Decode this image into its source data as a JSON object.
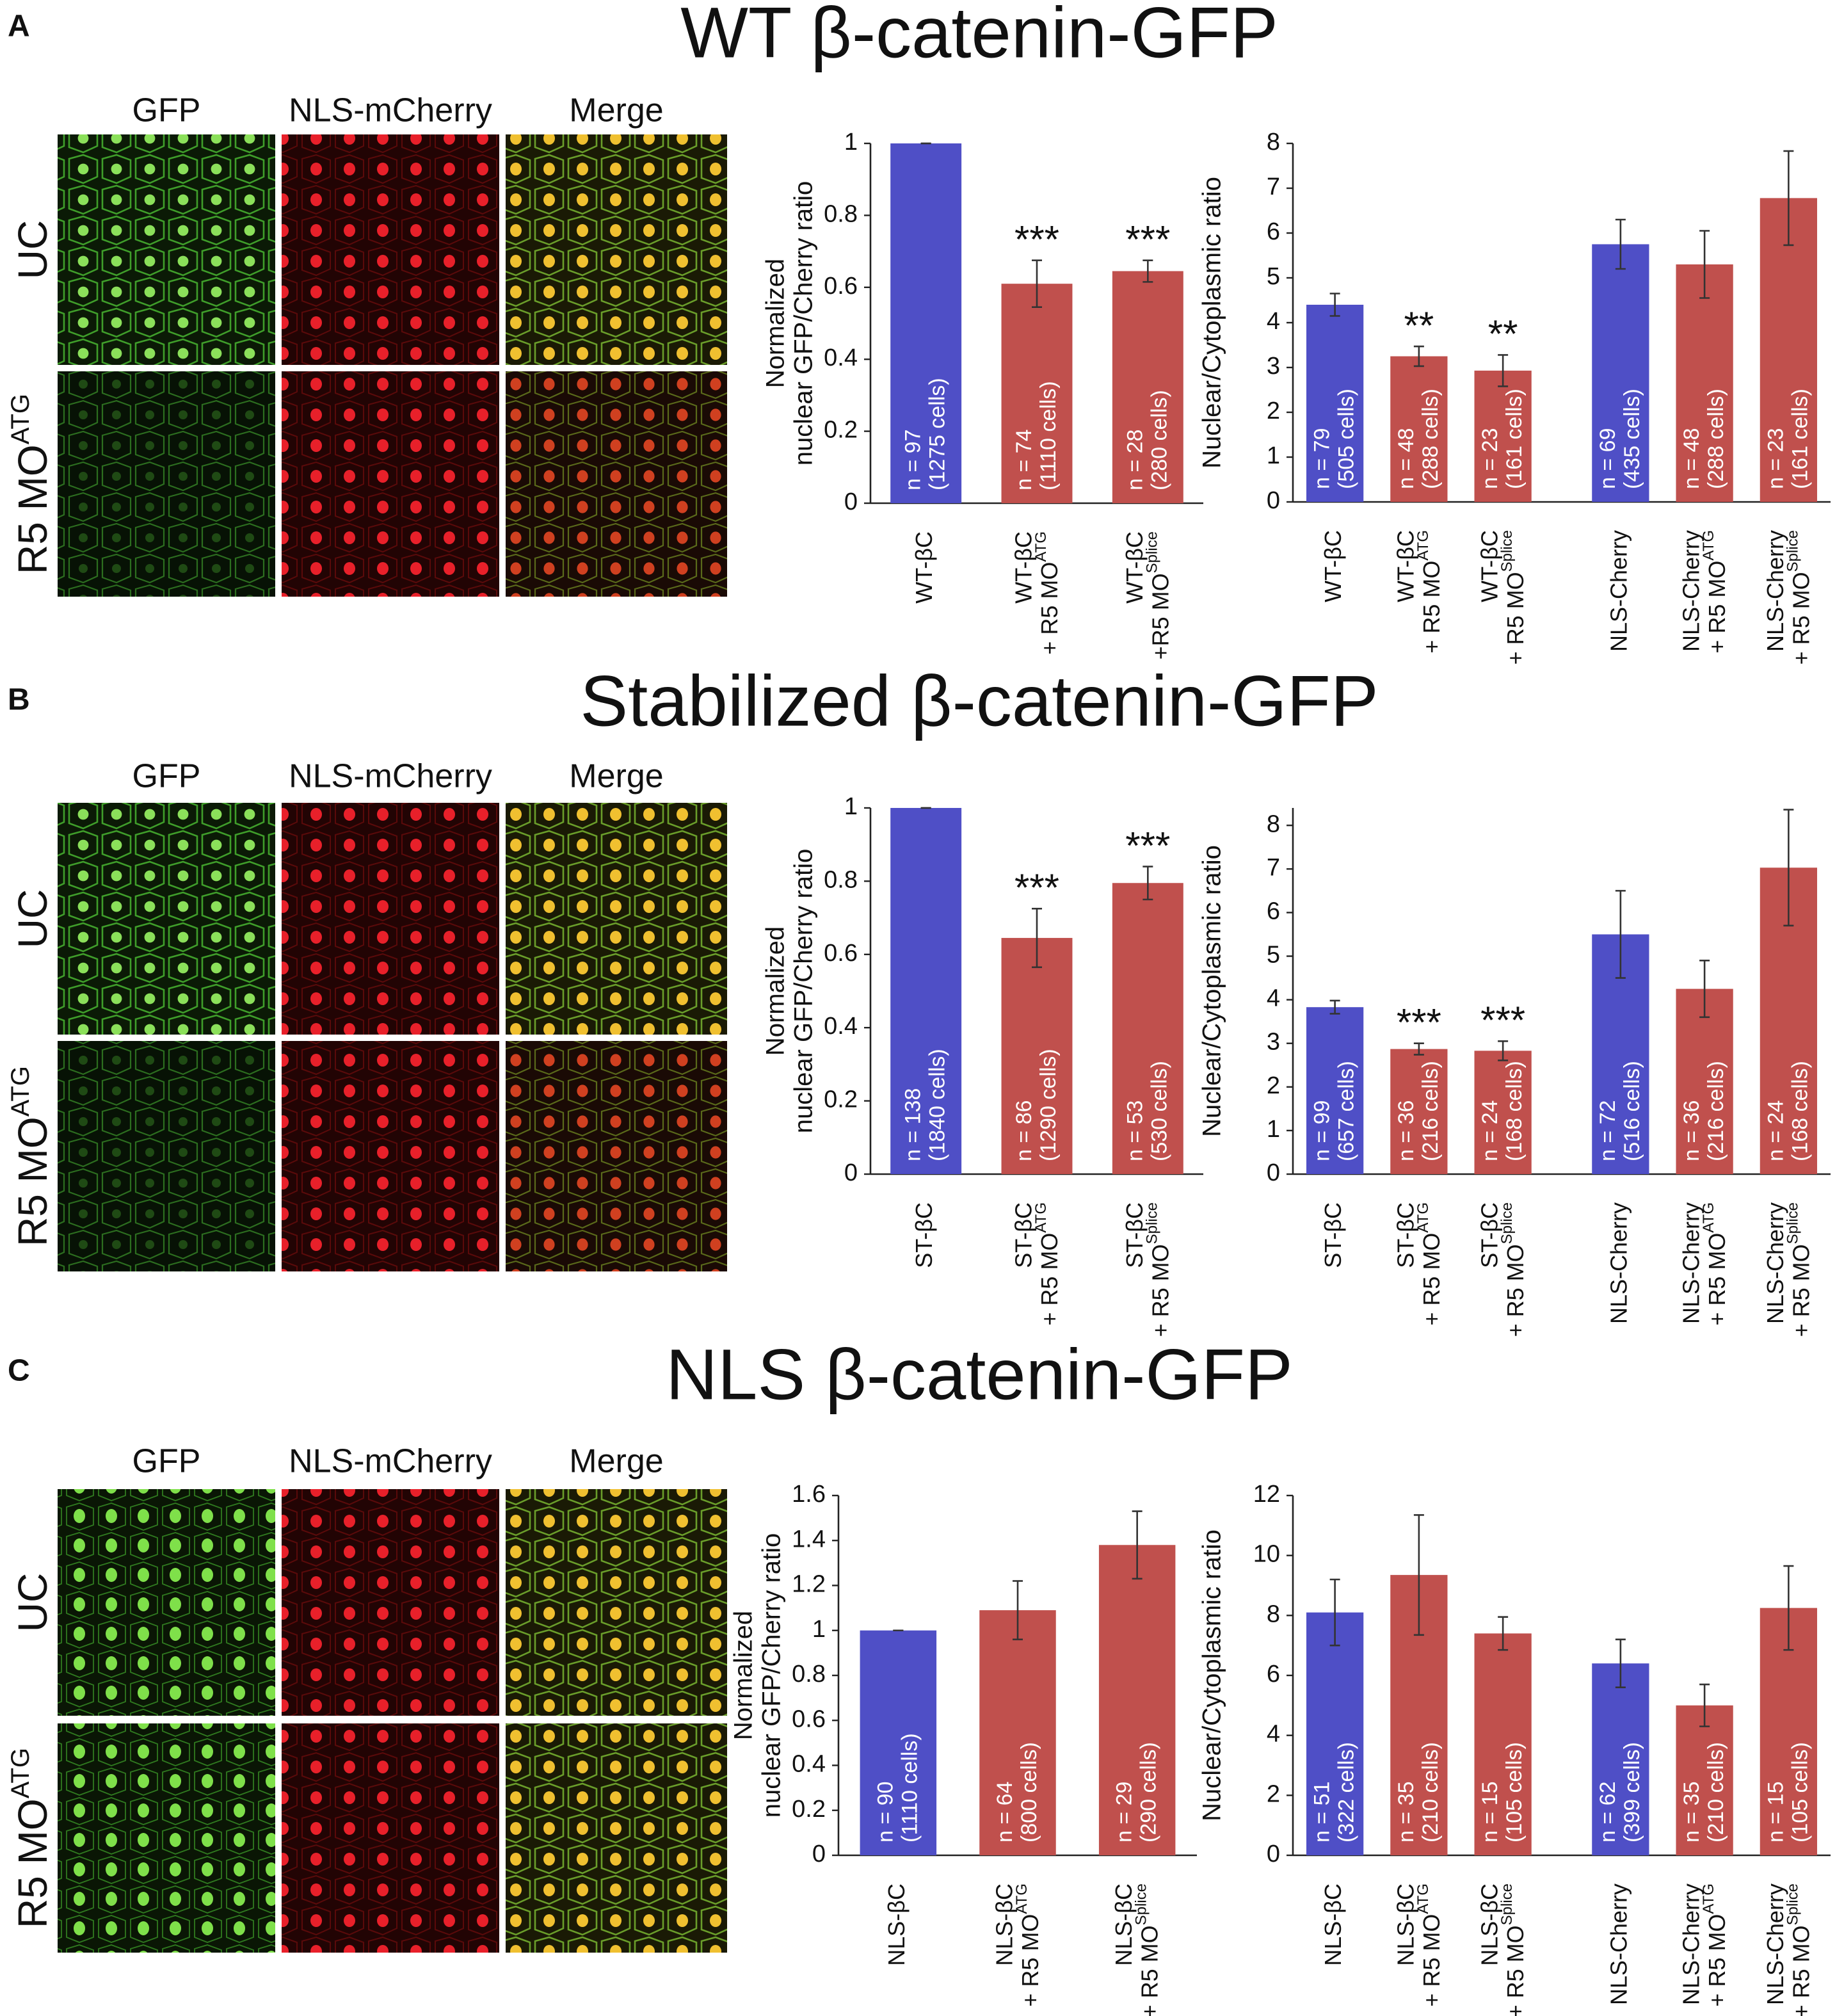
{
  "panels": [
    {
      "letter": "A",
      "title": "WT β-catenin-GFP",
      "columns": [
        "GFP",
        "NLS-mCherry",
        "Merge"
      ],
      "rows": [
        {
          "text": "UC"
        },
        {
          "text": "R5 MO",
          "sup": "ATG"
        }
      ]
    },
    {
      "letter": "B",
      "title": "Stabilized β-catenin-GFP",
      "columns": [
        "GFP",
        "NLS-mCherry",
        "Merge"
      ],
      "rows": [
        {
          "text": "UC"
        },
        {
          "text": "R5 MO",
          "sup": "ATG"
        }
      ]
    },
    {
      "letter": "C",
      "title": "NLS β-catenin-GFP",
      "columns": [
        "GFP",
        "NLS-mCherry",
        "Merge"
      ],
      "rows": [
        {
          "text": "UC"
        },
        {
          "text": "R5 MO",
          "sup": "ATG"
        }
      ]
    }
  ],
  "chart_data": [
    {
      "type": "bar",
      "ylabel": [
        "Normalized",
        "nuclear GFP/Cherry ratio"
      ],
      "categories": [
        {
          "line1": "WT-βC"
        },
        {
          "line1": "WT-βC",
          "line2": "+ R5 MO",
          "sup": "ATG"
        },
        {
          "line1": "WT-βC",
          "line2": "+R5 MO",
          "sup": "Splice"
        }
      ],
      "values": [
        1,
        0.61,
        0.645
      ],
      "errors": [
        0,
        0.065,
        0.03
      ],
      "colors": [
        "#4f4fc6",
        "#c0504d",
        "#c0504d"
      ],
      "bar_labels": [
        [
          "n = 97",
          "(1275 cells)"
        ],
        [
          "n = 74",
          "(1110 cells)"
        ],
        [
          "n = 28",
          "(280 cells)"
        ]
      ],
      "annotations": [
        null,
        "***",
        "***"
      ],
      "ylim": [
        0,
        1
      ],
      "yticks": [
        0,
        0.2,
        0.4,
        0.6,
        0.8,
        1
      ]
    },
    {
      "type": "bar",
      "ylabel": [
        "Nuclear/Cytoplasmic ratio"
      ],
      "categories": [
        {
          "line1": "WT-βC"
        },
        {
          "line1": "WT-βC",
          "line2": "+ R5 MO",
          "sup": "ATG"
        },
        {
          "line1": "WT-βC",
          "line2": "+ R5 MO",
          "sup": "Splice"
        },
        {
          "line1": "NLS-Cherry"
        },
        {
          "line1": "NLS-Cherry",
          "line2": "+ R5 MO",
          "sup": "ATG"
        },
        {
          "line1": "NLS-Cherry",
          "line2": "+ R5 MO",
          "sup": "Splice"
        }
      ],
      "values": [
        4.4,
        3.25,
        2.93,
        5.75,
        5.3,
        6.78
      ],
      "errors": [
        0.25,
        0.22,
        0.35,
        0.55,
        0.75,
        1.05
      ],
      "colors": [
        "#4f4fc6",
        "#c0504d",
        "#c0504d",
        "#4f4fc6",
        "#c0504d",
        "#c0504d"
      ],
      "bar_labels": [
        [
          "n = 79",
          "(505 cells)"
        ],
        [
          "n = 48",
          "(288 cells)"
        ],
        [
          "n = 23",
          "(161 cells)"
        ],
        [
          "n = 69",
          "(435 cells)"
        ],
        [
          "n = 48",
          "(288 cells)"
        ],
        [
          "n = 23",
          "(161 cells)"
        ]
      ],
      "annotations": [
        null,
        "**",
        "**",
        null,
        null,
        null
      ],
      "ylim": [
        0,
        8
      ],
      "yticks": [
        0,
        1,
        2,
        3,
        4,
        5,
        6,
        7,
        8
      ]
    },
    {
      "type": "bar",
      "ylabel": [
        "Normalized",
        "nuclear GFP/Cherry ratio"
      ],
      "categories": [
        {
          "line1": "ST-βC"
        },
        {
          "line1": "ST-βC",
          "line2": "+ R5 MO",
          "sup": "ATG"
        },
        {
          "line1": "ST-βC",
          "line2": "+ R5 MO",
          "sup": "Splice"
        }
      ],
      "values": [
        1,
        0.645,
        0.795
      ],
      "errors": [
        0,
        0.08,
        0.045
      ],
      "colors": [
        "#4f4fc6",
        "#c0504d",
        "#c0504d"
      ],
      "bar_labels": [
        [
          "n = 138",
          "(1840 cells)"
        ],
        [
          "n = 86",
          "(1290 cells)"
        ],
        [
          "n = 53",
          "(530 cells)"
        ]
      ],
      "annotations": [
        null,
        "***",
        "***"
      ],
      "ylim": [
        0,
        1
      ],
      "yticks": [
        0,
        0.2,
        0.4,
        0.6,
        0.8,
        1
      ]
    },
    {
      "type": "bar",
      "ylabel": [
        "Nuclear/Cytoplasmic ratio"
      ],
      "categories": [
        {
          "line1": "ST-βC"
        },
        {
          "line1": "ST-βC",
          "line2": "+ R5 MO",
          "sup": "ATG"
        },
        {
          "line1": "ST-βC",
          "line2": "+ R5 MO",
          "sup": "Splice"
        },
        {
          "line1": "NLS-Cherry"
        },
        {
          "line1": "NLS-Cherry",
          "line2": "+ R5 MO",
          "sup": "ATG"
        },
        {
          "line1": "NLS-Cherry",
          "line2": "+ R5 MO",
          "sup": "Splice"
        }
      ],
      "values": [
        3.83,
        2.87,
        2.83,
        5.5,
        4.25,
        7.03
      ],
      "errors": [
        0.15,
        0.13,
        0.22,
        1.0,
        0.65,
        1.33
      ],
      "colors": [
        "#4f4fc6",
        "#c0504d",
        "#c0504d",
        "#4f4fc6",
        "#c0504d",
        "#c0504d"
      ],
      "bar_labels": [
        [
          "n = 99",
          "(657 cells)"
        ],
        [
          "n = 36",
          "(216 cells)"
        ],
        [
          "n = 24",
          "(168 cells)"
        ],
        [
          "n = 72",
          "(516 cells)"
        ],
        [
          "n = 36",
          "(216 cells)"
        ],
        [
          "n = 24",
          "(168 cells)"
        ]
      ],
      "annotations": [
        null,
        "***",
        "***",
        null,
        null,
        null
      ],
      "ylim": [
        0,
        8.4
      ],
      "yticks": [
        0,
        1,
        2,
        3,
        4,
        5,
        6,
        7,
        8
      ]
    },
    {
      "type": "bar",
      "ylabel": [
        "Normalized",
        "nuclear GFP/Cherry ratio"
      ],
      "categories": [
        {
          "line1": "NLS-βC"
        },
        {
          "line1": "NLS-βC",
          "line2": "+ R5 MO",
          "sup": "ATG"
        },
        {
          "line1": "NLS-βC",
          "line2": "+ R5 MO",
          "sup": "Splice"
        }
      ],
      "values": [
        1,
        1.09,
        1.38
      ],
      "errors": [
        0,
        0.13,
        0.15
      ],
      "colors": [
        "#4f4fc6",
        "#c0504d",
        "#c0504d"
      ],
      "bar_labels": [
        [
          "n = 90",
          "(1110 cells)"
        ],
        [
          "n = 64",
          "(800 cells)"
        ],
        [
          "n = 29",
          "(290 cells)"
        ]
      ],
      "annotations": [
        null,
        null,
        null
      ],
      "ylim": [
        0,
        1.6
      ],
      "yticks": [
        0,
        0.2,
        0.4,
        0.6,
        0.8,
        1,
        1.2,
        1.4,
        1.6
      ]
    },
    {
      "type": "bar",
      "ylabel": [
        "Nuclear/Cytoplasmic ratio"
      ],
      "categories": [
        {
          "line1": "NLS-βC"
        },
        {
          "line1": "NLS-βC",
          "line2": "+ R5 MO",
          "sup": "ATG"
        },
        {
          "line1": "NLS-βC",
          "line2": "+ R5 MO",
          "sup": "Splice"
        },
        {
          "line1": "NLS-Cherry"
        },
        {
          "line1": "NLS-Cherry",
          "line2": "+ R5 MO",
          "sup": "ATG"
        },
        {
          "line1": "NLS-Cherry",
          "line2": "+ R5 MO",
          "sup": "Splice"
        }
      ],
      "values": [
        8.1,
        9.35,
        7.4,
        6.4,
        5.0,
        8.25
      ],
      "errors": [
        1.1,
        2.0,
        0.55,
        0.8,
        0.7,
        1.4
      ],
      "colors": [
        "#4f4fc6",
        "#c0504d",
        "#c0504d",
        "#4f4fc6",
        "#c0504d",
        "#c0504d"
      ],
      "bar_labels": [
        [
          "n = 51",
          "(322 cells)"
        ],
        [
          "n = 35",
          "(210 cells)"
        ],
        [
          "n = 15",
          "(105 cells)"
        ],
        [
          "n = 62",
          "(399 cells)"
        ],
        [
          "n = 35",
          "(210 cells)"
        ],
        [
          "n = 15",
          "(105 cells)"
        ]
      ],
      "annotations": [
        null,
        null,
        null,
        null,
        null,
        null
      ],
      "ylim": [
        0,
        12
      ],
      "yticks": [
        0,
        2,
        4,
        6,
        8,
        10,
        12
      ]
    }
  ]
}
